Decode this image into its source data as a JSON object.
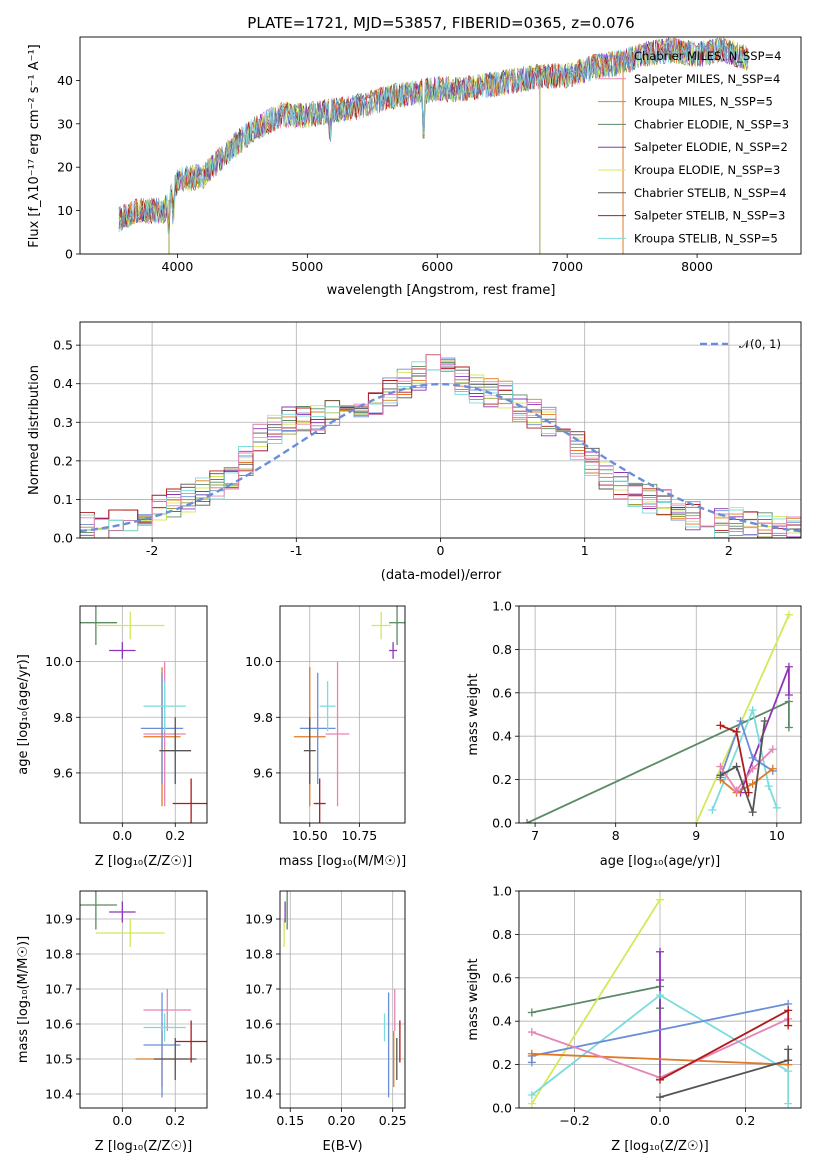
{
  "palette": [
    "#6a8fd8",
    "#e07a26",
    "#9ea03c",
    "#5b8a64",
    "#8e35b8",
    "#d4e85a",
    "#555555",
    "#b01c1c",
    "#7adcdc",
    "#e585b4"
  ],
  "chart_data": [
    {
      "id": "spectrum",
      "type": "line",
      "title": "PLATE=1721, MJD=53857, FIBERID=0365, z=0.076",
      "xlabel": "wavelength [Angstrom, rest frame]",
      "ylabel": "Flux [f_λ10⁻¹⁷ erg cm⁻² s⁻¹ A⁻¹]",
      "xlim": [
        3250,
        8800
      ],
      "ylim": [
        0,
        50
      ],
      "xticks": [
        4000,
        5000,
        6000,
        7000,
        8000
      ],
      "yticks": [
        0,
        10,
        20,
        30,
        40
      ],
      "legend_loc": "right",
      "series": [
        {
          "name": "Chabrier MILES, N_SSP=4"
        },
        {
          "name": "Salpeter MILES, N_SSP=4"
        },
        {
          "name": "Kroupa MILES, N_SSP=5"
        },
        {
          "name": "Chabrier ELODIE, N_SSP=3"
        },
        {
          "name": "Salpeter ELODIE, N_SSP=2"
        },
        {
          "name": "Kroupa ELODIE, N_SSP=3"
        },
        {
          "name": "Chabrier STELIB, N_SSP=4"
        },
        {
          "name": "Salpeter STELIB, N_SSP=3"
        },
        {
          "name": "Kroupa STELIB, N_SSP=5"
        }
      ],
      "continuum": {
        "x": [
          3550,
          3700,
          3900,
          4000,
          4200,
          4400,
          4600,
          4800,
          5000,
          5200,
          5400,
          5600,
          5800,
          6000,
          6200,
          6400,
          6600,
          6800,
          7000,
          7200,
          7400,
          7600,
          7800,
          8000,
          8200,
          8400
        ],
        "y": [
          8,
          10,
          10,
          17,
          18,
          24,
          29,
          32,
          32,
          33,
          34,
          36,
          37,
          38,
          38,
          39,
          40,
          41,
          41,
          43,
          44,
          46,
          47,
          46,
          47,
          45
        ]
      }
    },
    {
      "id": "residuals",
      "type": "step",
      "xlabel": "(data-model)/error",
      "ylabel": "Normed distribution",
      "xlim": [
        -2.5,
        2.5
      ],
      "ylim": [
        0,
        0.56
      ],
      "xticks": [
        -2,
        -1,
        0,
        1,
        2
      ],
      "yticks": [
        0.0,
        0.1,
        0.2,
        0.3,
        0.4,
        0.5
      ],
      "legend": "𝒩(0, 1)",
      "bin_edges_start": -2.6,
      "bin_width": 0.1,
      "base": [
        0.02,
        0.03,
        0.03,
        0.04,
        0.05,
        0.06,
        0.08,
        0.09,
        0.1,
        0.12,
        0.14,
        0.16,
        0.2,
        0.26,
        0.28,
        0.3,
        0.31,
        0.31,
        0.32,
        0.33,
        0.34,
        0.36,
        0.38,
        0.4,
        0.42,
        0.44,
        0.43,
        0.41,
        0.39,
        0.38,
        0.37,
        0.34,
        0.32,
        0.3,
        0.28,
        0.24,
        0.2,
        0.16,
        0.14,
        0.12,
        0.1,
        0.09,
        0.08,
        0.06,
        0.05,
        0.04,
        0.04,
        0.03,
        0.03,
        0.02,
        0.02,
        0.02
      ]
    },
    {
      "id": "age_vs_Z",
      "type": "errorbar",
      "xlabel": "Z [log₁₀(Z/Z☉)]",
      "ylabel": "age  [log₁₀(age/yr)]",
      "xlim": [
        -0.16,
        0.32
      ],
      "ylim": [
        9.42,
        10.2
      ],
      "xticks": [
        0.0,
        0.2
      ],
      "xticklabels": [
        "0.0",
        "0.2"
      ],
      "yticks": [
        9.6,
        9.8,
        10.0
      ],
      "points": [
        {
          "c": 1,
          "x": 0.15,
          "xe": 0.07,
          "y": 9.73,
          "ye": 0.25
        },
        {
          "c": 9,
          "x": 0.16,
          "xe": 0.08,
          "y": 9.74,
          "ye": 0.26
        },
        {
          "c": 0,
          "x": 0.15,
          "xe": 0.08,
          "y": 9.76,
          "ye": 0.2
        },
        {
          "c": 8,
          "x": 0.16,
          "xe": 0.08,
          "y": 9.84,
          "ye": 0.09
        },
        {
          "c": 6,
          "x": 0.2,
          "xe": 0.06,
          "y": 9.68,
          "ye": 0.12
        },
        {
          "c": 7,
          "x": 0.26,
          "xe": 0.07,
          "y": 9.49,
          "ye": 0.09
        },
        {
          "c": 3,
          "x": -0.1,
          "xe": 0.08,
          "y": 10.14,
          "ye": 0.08
        },
        {
          "c": 5,
          "x": 0.03,
          "xe": 0.13,
          "y": 10.13,
          "ye": 0.05
        },
        {
          "c": 4,
          "x": 0.0,
          "xe": 0.05,
          "y": 10.04,
          "ye": 0.03
        }
      ]
    },
    {
      "id": "age_vs_mass",
      "type": "errorbar",
      "xlabel": "mass [log₁₀(M/M☉)]",
      "ylabel": "",
      "xlim": [
        10.35,
        10.98
      ],
      "ylim": [
        9.42,
        10.2
      ],
      "xticks": [
        10.5,
        10.75
      ],
      "xticklabels": [
        "10.50",
        "10.75"
      ],
      "yticks": [
        9.6,
        9.8,
        10.0
      ],
      "points": [
        {
          "c": 1,
          "x": 10.5,
          "xe": 0.08,
          "y": 9.73,
          "ye": 0.25
        },
        {
          "c": 9,
          "x": 10.64,
          "xe": 0.06,
          "y": 9.74,
          "ye": 0.26
        },
        {
          "c": 0,
          "x": 10.54,
          "xe": 0.09,
          "y": 9.76,
          "ye": 0.2
        },
        {
          "c": 8,
          "x": 10.59,
          "xe": 0.04,
          "y": 9.84,
          "ye": 0.09
        },
        {
          "c": 6,
          "x": 10.5,
          "xe": 0.03,
          "y": 9.68,
          "ye": 0.12
        },
        {
          "c": 7,
          "x": 10.55,
          "xe": 0.03,
          "y": 9.49,
          "ye": 0.09
        },
        {
          "c": 3,
          "x": 10.94,
          "xe": 0.04,
          "y": 10.14,
          "ye": 0.08
        },
        {
          "c": 5,
          "x": 10.86,
          "xe": 0.05,
          "y": 10.13,
          "ye": 0.05
        },
        {
          "c": 4,
          "x": 10.92,
          "xe": 0.02,
          "y": 10.04,
          "ye": 0.03
        }
      ]
    },
    {
      "id": "weight_vs_age",
      "type": "line",
      "xlabel": "age  [log₁₀(age/yr)]",
      "ylabel": "mass weight",
      "xlim": [
        6.8,
        10.3
      ],
      "ylim": [
        0,
        1.0
      ],
      "xticks": [
        7,
        8,
        9,
        10
      ],
      "yticks": [
        0.0,
        0.2,
        0.4,
        0.6,
        0.8,
        1.0
      ],
      "series": [
        {
          "c": 3,
          "x": [
            6.9,
            10.15,
            10.15
          ],
          "y": [
            0.0,
            0.56,
            0.44
          ]
        },
        {
          "c": 5,
          "x": [
            9.0,
            10.15
          ],
          "y": [
            0.0,
            0.96
          ]
        },
        {
          "c": 4,
          "x": [
            9.55,
            10.15,
            10.15
          ],
          "y": [
            0.14,
            0.72,
            0.59
          ]
        },
        {
          "c": 8,
          "x": [
            9.2,
            9.7,
            9.9,
            10.0
          ],
          "y": [
            0.06,
            0.52,
            0.17,
            0.07
          ]
        },
        {
          "c": 0,
          "x": [
            9.3,
            9.55,
            9.7,
            9.95
          ],
          "y": [
            0.21,
            0.47,
            0.3,
            0.24
          ]
        },
        {
          "c": 1,
          "x": [
            9.3,
            9.5,
            9.7,
            9.95
          ],
          "y": [
            0.2,
            0.14,
            0.18,
            0.25
          ]
        },
        {
          "c": 9,
          "x": [
            9.3,
            9.5,
            9.7,
            9.95
          ],
          "y": [
            0.26,
            0.15,
            0.25,
            0.34
          ]
        },
        {
          "c": 6,
          "x": [
            9.3,
            9.5,
            9.7,
            9.85
          ],
          "y": [
            0.22,
            0.26,
            0.05,
            0.47
          ]
        },
        {
          "c": 7,
          "x": [
            9.3,
            9.5,
            9.65
          ],
          "y": [
            0.45,
            0.42,
            0.14
          ]
        }
      ]
    },
    {
      "id": "mass_vs_Z",
      "type": "errorbar",
      "xlabel": "Z [log₁₀(Z/Z☉)]",
      "ylabel": "mass [log₁₀(M/M☉)]",
      "xlim": [
        -0.16,
        0.32
      ],
      "ylim": [
        10.36,
        10.98
      ],
      "xticks": [
        0.0,
        0.2
      ],
      "xticklabels": [
        "0.0",
        "0.2"
      ],
      "yticks": [
        10.4,
        10.5,
        10.6,
        10.7,
        10.8,
        10.9
      ],
      "points": [
        {
          "c": 1,
          "x": 0.15,
          "xe": 0.1,
          "y": 10.5,
          "ye": 0.08
        },
        {
          "c": 9,
          "x": 0.17,
          "xe": 0.09,
          "y": 10.64,
          "ye": 0.06
        },
        {
          "c": 0,
          "x": 0.15,
          "xe": 0.07,
          "y": 10.54,
          "ye": 0.15
        },
        {
          "c": 8,
          "x": 0.16,
          "xe": 0.08,
          "y": 10.59,
          "ye": 0.04
        },
        {
          "c": 6,
          "x": 0.2,
          "xe": 0.08,
          "y": 10.5,
          "ye": 0.06
        },
        {
          "c": 7,
          "x": 0.26,
          "xe": 0.06,
          "y": 10.55,
          "ye": 0.06
        },
        {
          "c": 3,
          "x": -0.1,
          "xe": 0.08,
          "y": 10.94,
          "ye": 0.07
        },
        {
          "c": 5,
          "x": 0.03,
          "xe": 0.13,
          "y": 10.86,
          "ye": 0.04
        },
        {
          "c": 4,
          "x": 0.0,
          "xe": 0.05,
          "y": 10.92,
          "ye": 0.03
        }
      ]
    },
    {
      "id": "mass_vs_ebv",
      "type": "errorbar",
      "xlabel": "E(B-V)",
      "ylabel": "",
      "xlim": [
        0.14,
        0.262
      ],
      "ylim": [
        10.36,
        10.98
      ],
      "xticks": [
        0.15,
        0.2,
        0.25
      ],
      "xticklabels": [
        "0.15",
        "0.20",
        "0.25"
      ],
      "yticks": [
        10.4,
        10.5,
        10.6,
        10.7,
        10.8,
        10.9
      ],
      "points": [
        {
          "c": 1,
          "x": 0.251,
          "xe": 0.0,
          "y": 10.5,
          "ye": 0.08
        },
        {
          "c": 9,
          "x": 0.252,
          "xe": 0.0,
          "y": 10.64,
          "ye": 0.06
        },
        {
          "c": 0,
          "x": 0.246,
          "xe": 0.0,
          "y": 10.54,
          "ye": 0.15
        },
        {
          "c": 8,
          "x": 0.242,
          "xe": 0.0,
          "y": 10.59,
          "ye": 0.04
        },
        {
          "c": 6,
          "x": 0.254,
          "xe": 0.0,
          "y": 10.5,
          "ye": 0.06
        },
        {
          "c": 7,
          "x": 0.257,
          "xe": 0.0,
          "y": 10.55,
          "ye": 0.06
        },
        {
          "c": 3,
          "x": 0.147,
          "xe": 0.0,
          "y": 10.94,
          "ye": 0.07
        },
        {
          "c": 5,
          "x": 0.144,
          "xe": 0.0,
          "y": 10.86,
          "ye": 0.04
        },
        {
          "c": 4,
          "x": 0.145,
          "xe": 0.0,
          "y": 10.92,
          "ye": 0.03
        }
      ]
    },
    {
      "id": "weight_vs_Z",
      "type": "line",
      "xlabel": "Z [log₁₀(Z/Z☉)]",
      "ylabel": "mass weight",
      "xlim": [
        -0.33,
        0.33
      ],
      "ylim": [
        0,
        1.0
      ],
      "xticks": [
        -0.2,
        0.0,
        0.2
      ],
      "xticklabels": [
        "−0.2",
        "0.0",
        "0.2"
      ],
      "yticks": [
        0.0,
        0.2,
        0.4,
        0.6,
        0.8,
        1.0
      ],
      "series": [
        {
          "c": 3,
          "x": [
            -0.3,
            0.0,
            0.0
          ],
          "y": [
            0.44,
            0.56,
            0.46
          ]
        },
        {
          "c": 5,
          "x": [
            -0.3,
            0.0
          ],
          "y": [
            0.02,
            0.96
          ]
        },
        {
          "c": 4,
          "x": [
            0.0,
            0.0,
            0.0
          ],
          "y": [
            0.14,
            0.72,
            0.59
          ]
        },
        {
          "c": 8,
          "x": [
            -0.3,
            0.0,
            0.3,
            0.3
          ],
          "y": [
            0.06,
            0.52,
            0.17,
            0.02
          ]
        },
        {
          "c": 0,
          "x": [
            -0.3,
            -0.3,
            0.3
          ],
          "y": [
            0.21,
            0.24,
            0.48
          ]
        },
        {
          "c": 1,
          "x": [
            -0.3,
            0.3
          ],
          "y": [
            0.25,
            0.2
          ]
        },
        {
          "c": 9,
          "x": [
            -0.3,
            0.0,
            0.3
          ],
          "y": [
            0.35,
            0.14,
            0.41
          ]
        },
        {
          "c": 6,
          "x": [
            0.0,
            0.3,
            0.3
          ],
          "y": [
            0.05,
            0.22,
            0.27
          ]
        },
        {
          "c": 7,
          "x": [
            0.0,
            0.3,
            0.3
          ],
          "y": [
            0.13,
            0.45,
            0.38
          ]
        }
      ]
    }
  ]
}
